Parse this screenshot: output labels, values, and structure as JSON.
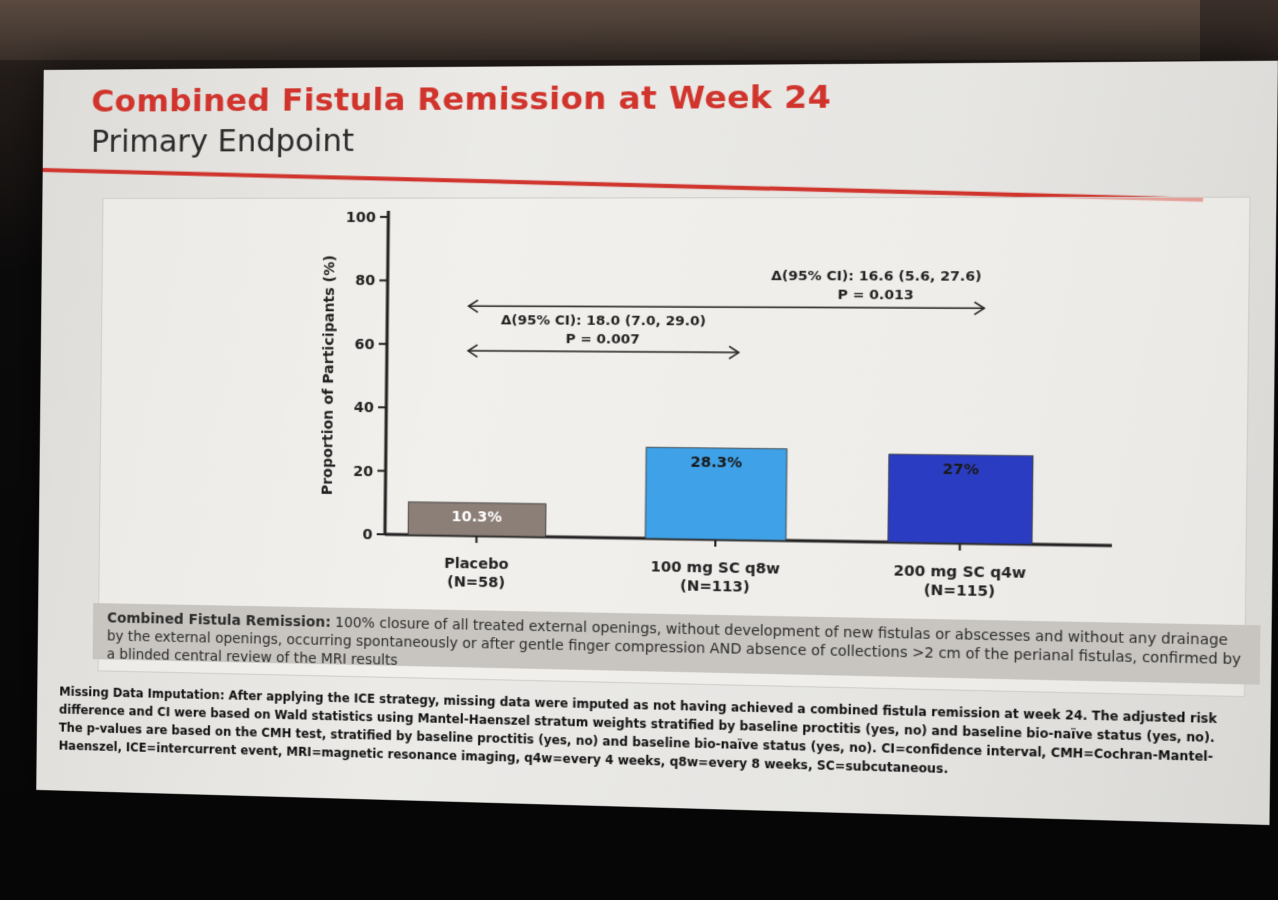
{
  "slide": {
    "title": "Combined Fistula Remission at Week 24",
    "subtitle": "Primary Endpoint",
    "definition_label": "Combined Fistula Remission:",
    "definition_text": " 100% closure of all treated external openings, without development of new fistulas or abscesses and without any drainage by the external openings, occurring spontaneously or after gentle finger compression AND absence of collections >2 cm of the perianal fistulas, confirmed by a blinded central review of the MRI results",
    "footnote": "Missing Data Imputation: After applying the ICE strategy, missing data were imputed as not having achieved a combined fistula remission at week 24. The adjusted risk difference and CI were based on Wald statistics using Mantel-Haenszel stratum weights stratified by baseline proctitis (yes, no) and baseline bio-naïve status (yes, no). The p-values are based on the CMH test, stratified by baseline proctitis (yes, no) and baseline bio-naïve status (yes, no). CI=confidence interval, CMH=Cochran-Mantel-Haenszel, ICE=intercurrent event, MRI=magnetic resonance imaging, q4w=every 4 weeks, q8w=every 8 weeks, SC=subcutaneous."
  },
  "chart_data": {
    "type": "bar",
    "ylabel": "Proportion of Participants (%)",
    "ylim": [
      0,
      100
    ],
    "yticks": [
      0,
      20,
      40,
      60,
      80,
      100
    ],
    "categories": [
      {
        "name": "Placebo",
        "n": "(N=58)"
      },
      {
        "name": "100 mg SC q8w",
        "n": "(N=113)"
      },
      {
        "name": "200 mg SC q4w",
        "n": "(N=115)"
      }
    ],
    "values": [
      10.3,
      28.3,
      27
    ],
    "value_labels": [
      "10.3%",
      "28.3%",
      "27%"
    ],
    "colors": [
      "#8c7f78",
      "#3fa2e8",
      "#2a3dc2"
    ],
    "label_colors": [
      "#ffffff",
      "#1a1a1a",
      "#1a1a1a"
    ],
    "comparisons": [
      {
        "from": 0,
        "to": 1,
        "y": 58,
        "line1": "Δ(95% CI): 18.0 (7.0, 29.0)",
        "line2": "P = 0.007"
      },
      {
        "from": 0,
        "to": 2,
        "y": 72,
        "line1": "Δ(95% CI): 16.6 (5.6, 27.6)",
        "line2": "P = 0.013"
      }
    ]
  }
}
